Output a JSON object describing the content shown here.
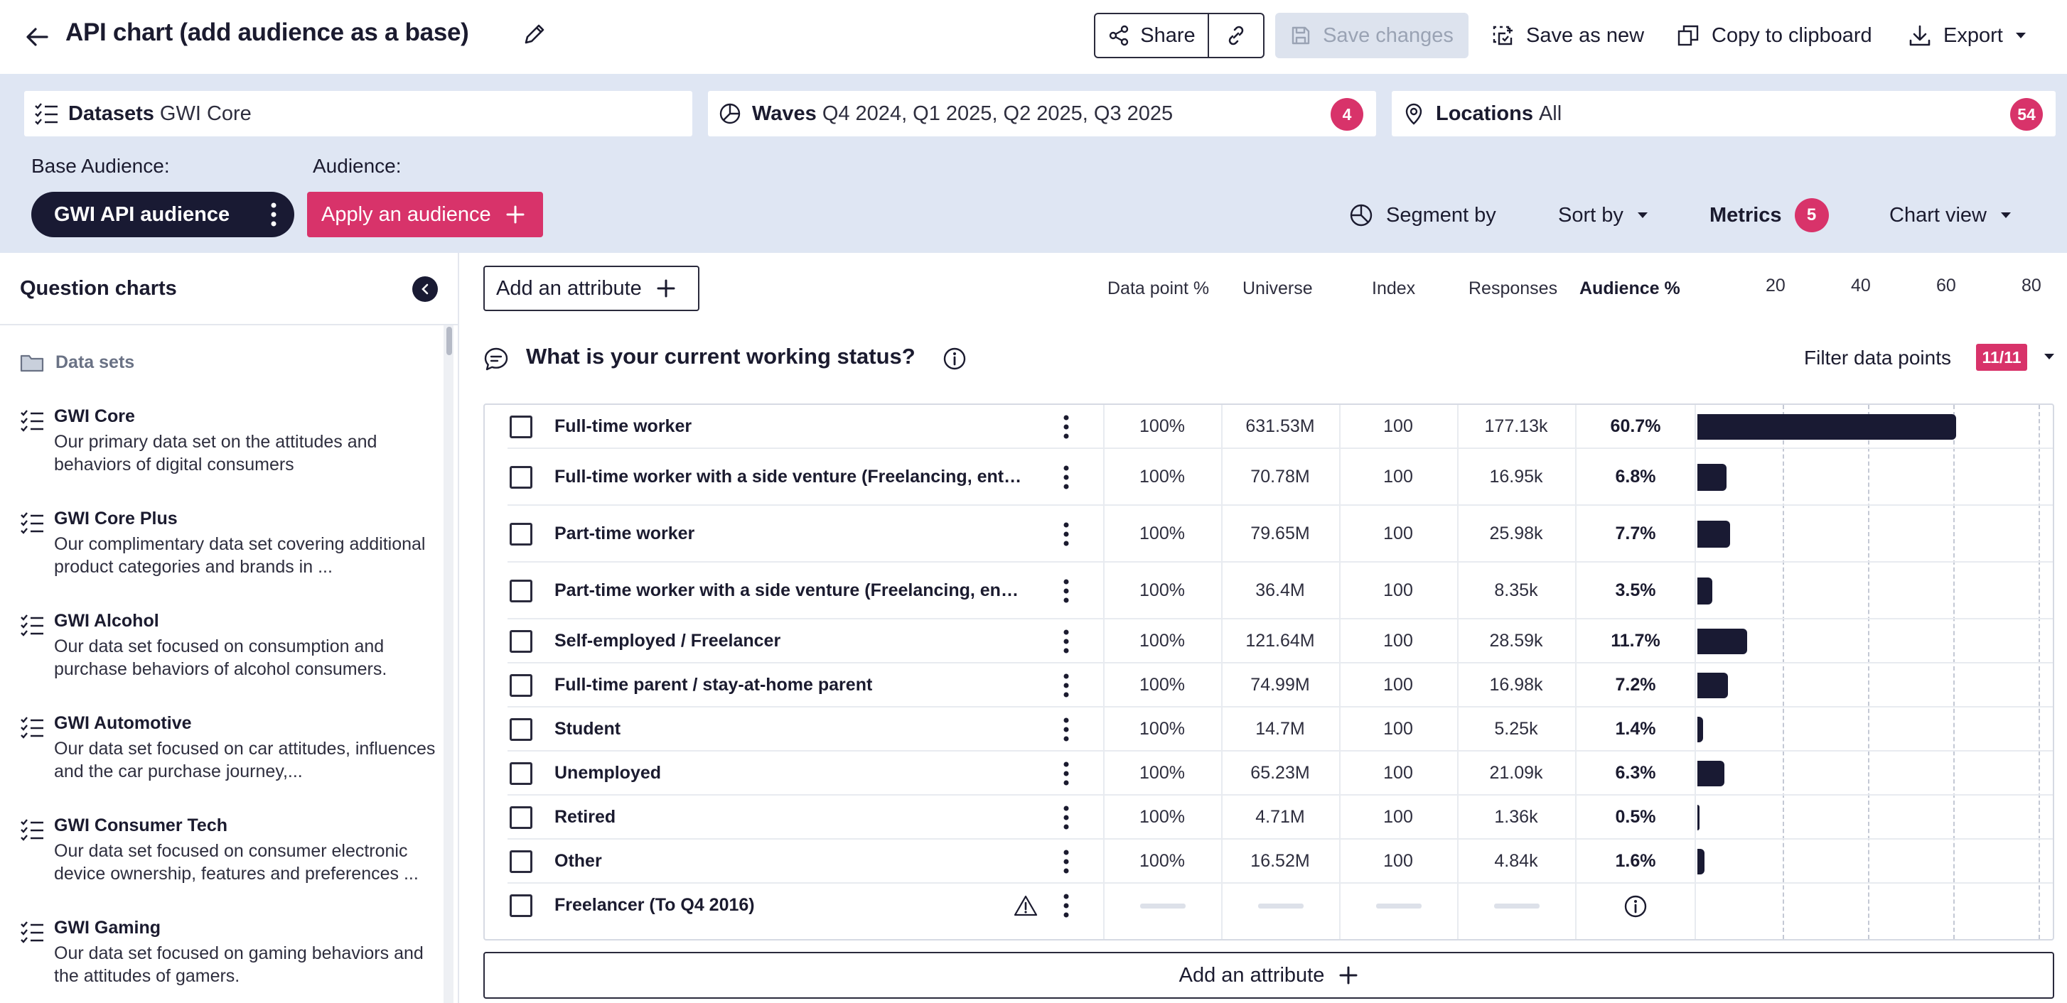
{
  "header": {
    "title": "API chart (add audience as a base)",
    "share_label": "Share",
    "save_changes_label": "Save changes",
    "save_as_new_label": "Save as new",
    "copy_label": "Copy to clipboard",
    "export_label": "Export"
  },
  "filters": {
    "datasets": {
      "label": "Datasets",
      "value": "GWI Core"
    },
    "waves": {
      "label": "Waves",
      "value": "Q4 2024, Q1 2025, Q2 2025, Q3 2025",
      "count": "4"
    },
    "locations": {
      "label": "Locations",
      "value": "All",
      "count": "54"
    }
  },
  "audience": {
    "base_label": "Base Audience:",
    "audience_label": "Audience:",
    "base_value": "GWI API audience",
    "apply_label": "Apply an audience"
  },
  "controls": {
    "segment_by": "Segment by",
    "sort_by": "Sort by",
    "metrics": "Metrics",
    "metrics_count": "5",
    "chart_view": "Chart view"
  },
  "sidebar": {
    "title": "Question charts",
    "section": "Data sets",
    "items": [
      {
        "name": "GWI Core",
        "desc": "Our primary data set on the attitudes and behaviors of digital consumers"
      },
      {
        "name": "GWI Core Plus",
        "desc": "Our complimentary data set covering additional product categories and brands in ..."
      },
      {
        "name": "GWI Alcohol",
        "desc": "Our data set focused on consumption and purchase behaviors of alcohol consumers."
      },
      {
        "name": "GWI Automotive",
        "desc": "Our data set focused on car attitudes, influences and the car purchase journey,..."
      },
      {
        "name": "GWI Consumer Tech",
        "desc": "Our data set focused on consumer electronic device ownership, features and preferences ..."
      },
      {
        "name": "GWI Gaming",
        "desc": "Our data set focused on gaming behaviors and the attitudes of gamers."
      }
    ]
  },
  "main": {
    "add_attribute": "Add an attribute",
    "columns": {
      "data_point": "Data point %",
      "universe": "Universe",
      "index": "Index",
      "responses": "Responses",
      "audience": "Audience %"
    },
    "ticks": [
      "20",
      "40",
      "60",
      "80"
    ],
    "question": "What is your current working status?",
    "filter_label": "Filter data points",
    "filter_count": "11/11",
    "rows": [
      {
        "label": "Full-time worker",
        "dp": "100%",
        "universe": "631.53M",
        "index": "100",
        "responses": "177.13k",
        "audience": "60.7%",
        "value": 60.7
      },
      {
        "label": "Full-time worker with a side venture (Freelancing, entrepreneurship, etc.)",
        "dp": "100%",
        "universe": "70.78M",
        "index": "100",
        "responses": "16.95k",
        "audience": "6.8%",
        "value": 6.8
      },
      {
        "label": "Part-time worker",
        "dp": "100%",
        "universe": "79.65M",
        "index": "100",
        "responses": "25.98k",
        "audience": "7.7%",
        "value": 7.7
      },
      {
        "label": "Part-time worker with a side venture (Freelancing, entrepreneurship, etc.)",
        "dp": "100%",
        "universe": "36.4M",
        "index": "100",
        "responses": "8.35k",
        "audience": "3.5%",
        "value": 3.5
      },
      {
        "label": "Self-employed / Freelancer",
        "dp": "100%",
        "universe": "121.64M",
        "index": "100",
        "responses": "28.59k",
        "audience": "11.7%",
        "value": 11.7
      },
      {
        "label": "Full-time parent / stay-at-home parent",
        "dp": "100%",
        "universe": "74.99M",
        "index": "100",
        "responses": "16.98k",
        "audience": "7.2%",
        "value": 7.2
      },
      {
        "label": "Student",
        "dp": "100%",
        "universe": "14.7M",
        "index": "100",
        "responses": "5.25k",
        "audience": "1.4%",
        "value": 1.4
      },
      {
        "label": "Unemployed",
        "dp": "100%",
        "universe": "65.23M",
        "index": "100",
        "responses": "21.09k",
        "audience": "6.3%",
        "value": 6.3
      },
      {
        "label": "Retired",
        "dp": "100%",
        "universe": "4.71M",
        "index": "100",
        "responses": "1.36k",
        "audience": "0.5%",
        "value": 0.5
      },
      {
        "label": "Other",
        "dp": "100%",
        "universe": "16.52M",
        "index": "100",
        "responses": "4.84k",
        "audience": "1.6%",
        "value": 1.6
      },
      {
        "label": "Freelancer (To Q4 2016)",
        "dp": "",
        "universe": "",
        "index": "",
        "responses": "",
        "audience": "",
        "value": null
      }
    ]
  },
  "colors": {
    "accent": "#d8336a",
    "navy": "#191a33",
    "panel": "#dfe6f3"
  },
  "icons": [
    "arrow-left-icon",
    "pencil-icon",
    "share-icon",
    "link-icon",
    "save-icon",
    "save-as-new-icon",
    "copy-icon",
    "download-icon",
    "chevron-down-icon",
    "list-icon",
    "waves-icon",
    "location-pin-icon",
    "kebab-icon",
    "plus-icon",
    "pie-chart-icon",
    "chevron-left-icon",
    "folder-icon",
    "speech-bubble-icon",
    "info-icon",
    "warning-icon"
  ]
}
